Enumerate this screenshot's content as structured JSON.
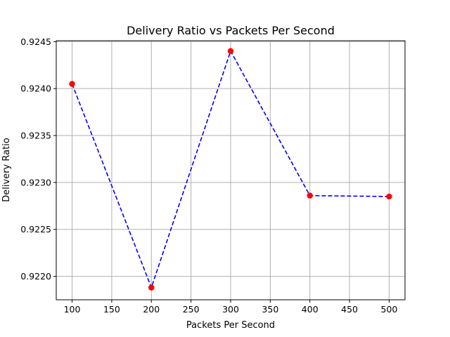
{
  "chart_data": {
    "type": "line",
    "title": "Delivery Ratio vs Packets Per Second",
    "xlabel": "Packets Per Second",
    "ylabel": "Delivery Ratio",
    "x": [
      100,
      200,
      300,
      400,
      500
    ],
    "series": [
      {
        "values": [
          0.92405,
          0.92188,
          0.9244,
          0.92286,
          0.92285
        ],
        "line_color": "#0000ff",
        "line_style": "dashed",
        "marker_color": "#ff0000",
        "marker": "circle"
      }
    ],
    "xlim": [
      80,
      520
    ],
    "ylim": [
      0.92175,
      0.92451
    ],
    "xticks": [
      100,
      150,
      200,
      250,
      300,
      350,
      400,
      450,
      500
    ],
    "xtick_labels": [
      "100",
      "150",
      "200",
      "250",
      "300",
      "350",
      "400",
      "450",
      "500"
    ],
    "yticks": [
      0.922,
      0.9225,
      0.923,
      0.9235,
      0.924,
      0.9245
    ],
    "ytick_labels": [
      "0.9220",
      "0.9225",
      "0.9230",
      "0.9235",
      "0.9240",
      "0.9245"
    ],
    "grid": true,
    "legend": "none"
  }
}
